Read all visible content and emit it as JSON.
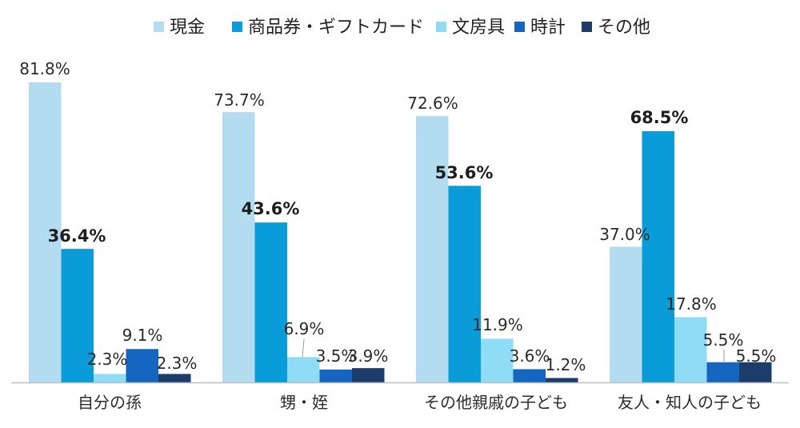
{
  "chart_data": {
    "type": "bar",
    "categories": [
      "自分の孫",
      "甥・姪",
      "その他親戚の子ども",
      "友人・知人の子ども"
    ],
    "series": [
      {
        "name": "現金",
        "color": "#b4dcf0",
        "values": [
          81.8,
          73.7,
          72.6,
          37.0
        ],
        "labels": [
          "81.8%",
          "73.7%",
          "72.6%",
          "37.0%"
        ]
      },
      {
        "name": "商品券・ギフトカード",
        "color": "#0a9cd8",
        "values": [
          36.4,
          43.6,
          53.6,
          68.5
        ],
        "labels": [
          "36.4%",
          "43.6%",
          "53.6%",
          "68.5%"
        ]
      },
      {
        "name": "文房具",
        "color": "#8fdcf6",
        "values": [
          2.3,
          6.9,
          11.9,
          17.8
        ],
        "labels": [
          "2.3%",
          "6.9%",
          "11.9%",
          "17.8%"
        ]
      },
      {
        "name": "時計",
        "color": "#1566c0",
        "values": [
          9.1,
          3.5,
          3.6,
          5.5
        ],
        "labels": [
          "9.1%",
          "3.5%",
          "3.6%",
          "5.5%"
        ]
      },
      {
        "name": "その他",
        "color": "#1c3c6a",
        "values": [
          2.3,
          3.9,
          1.2,
          5.5
        ],
        "labels": [
          "2.3%",
          "3.9%",
          "1.2%",
          "5.5%"
        ]
      }
    ],
    "ylim": [
      0,
      90
    ],
    "legend_position": "top",
    "grid": false
  }
}
